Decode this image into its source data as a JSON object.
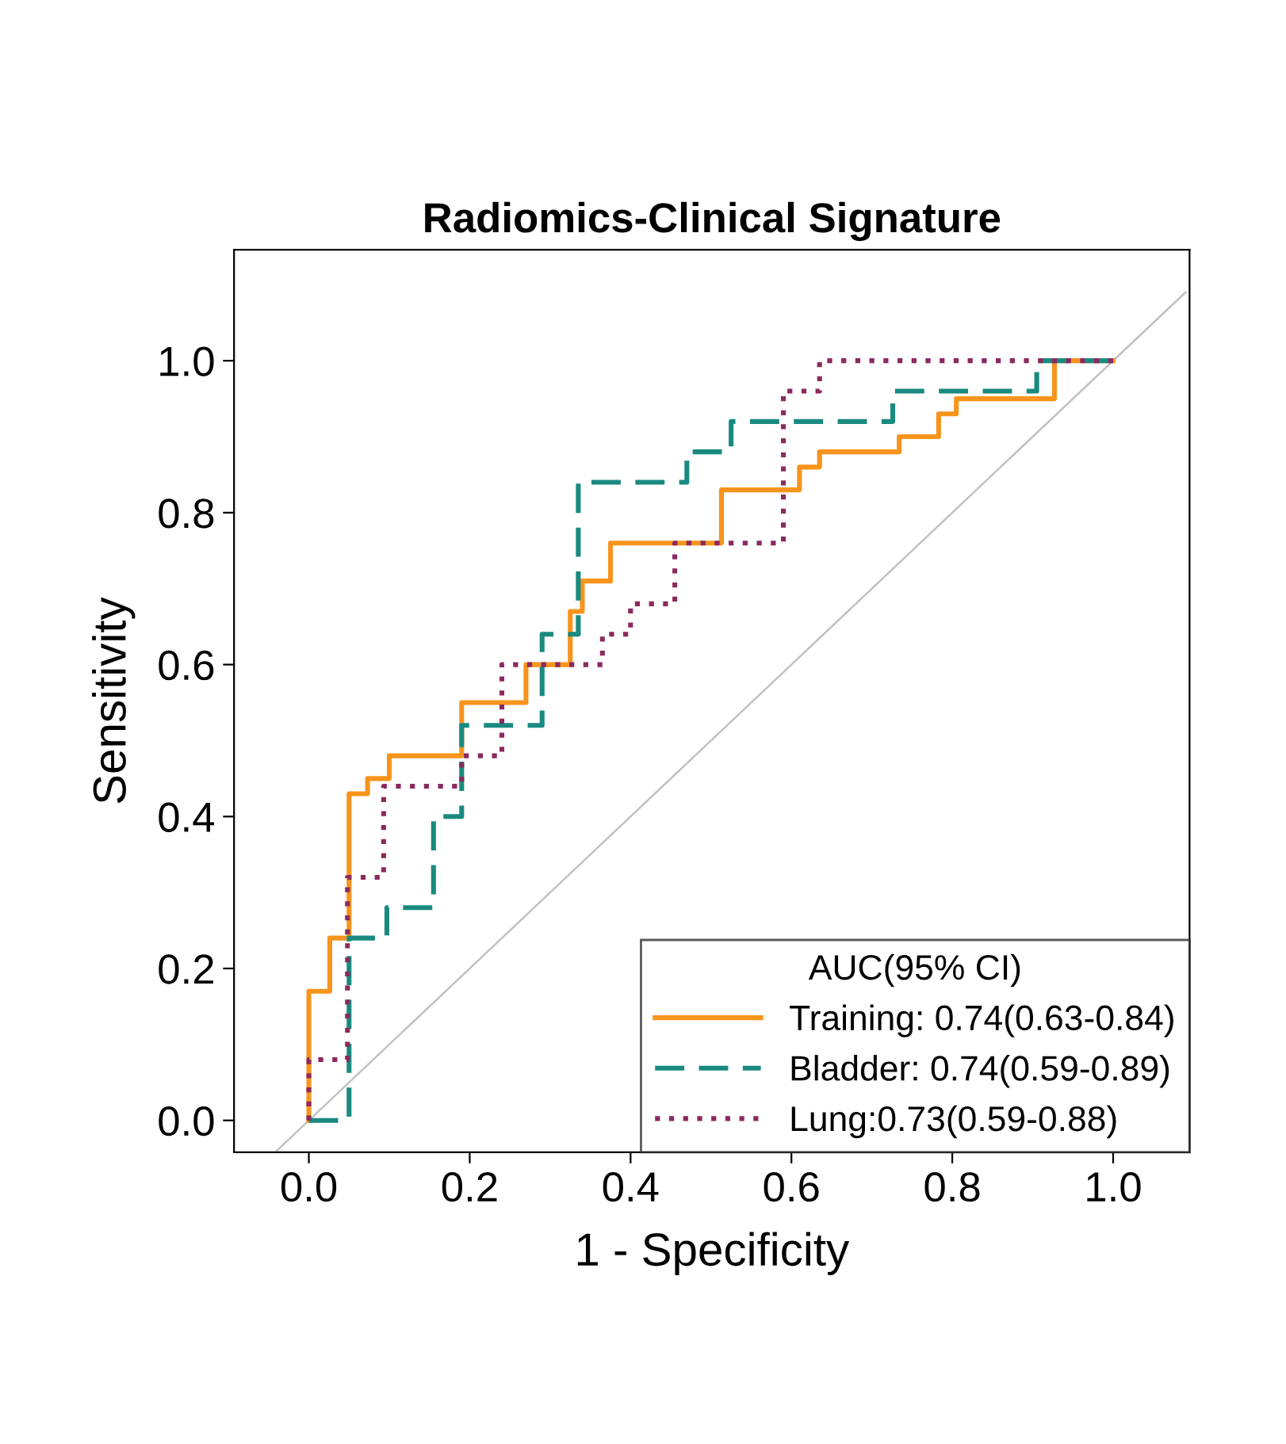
{
  "chart_data": {
    "type": "line",
    "title": "Radiomics-Clinical Signature",
    "xlabel": "1 - Specificity",
    "ylabel": "Sensitivity",
    "legend_title": "AUC(95% CI)",
    "series": [
      {
        "name": "Training: 0.74(0.63-0.84)",
        "color": "#f7941d",
        "line_style": "solid",
        "x": [
          0,
          0,
          0.026,
          0.026,
          0.05,
          0.05,
          0.073,
          0.073,
          0.1,
          0.1,
          0.19,
          0.19,
          0.27,
          0.27,
          0.325,
          0.325,
          0.34,
          0.34,
          0.375,
          0.375,
          0.513,
          0.513,
          0.61,
          0.61,
          0.635,
          0.635,
          0.734,
          0.734,
          0.783,
          0.783,
          0.805,
          0.805,
          0.927,
          0.927,
          1.0
        ],
        "values": [
          0,
          0.17,
          0.17,
          0.24,
          0.24,
          0.43,
          0.43,
          0.45,
          0.45,
          0.48,
          0.48,
          0.55,
          0.55,
          0.6,
          0.6,
          0.67,
          0.67,
          0.71,
          0.71,
          0.76,
          0.76,
          0.83,
          0.83,
          0.86,
          0.86,
          0.88,
          0.88,
          0.9,
          0.9,
          0.93,
          0.93,
          0.95,
          0.95,
          1.0,
          1.0
        ]
      },
      {
        "name": "Bladder: 0.74(0.59-0.89)",
        "color": "#1a8a80",
        "line_style": "dashed",
        "x": [
          0,
          0.05,
          0.05,
          0.097,
          0.097,
          0.155,
          0.155,
          0.19,
          0.19,
          0.29,
          0.29,
          0.335,
          0.335,
          0.47,
          0.47,
          0.525,
          0.525,
          0.726,
          0.726,
          0.905,
          0.905,
          1.0
        ],
        "values": [
          0,
          0,
          0.24,
          0.24,
          0.28,
          0.28,
          0.4,
          0.4,
          0.52,
          0.52,
          0.64,
          0.64,
          0.84,
          0.84,
          0.88,
          0.88,
          0.92,
          0.92,
          0.96,
          0.96,
          1.0,
          1.0
        ]
      },
      {
        "name": "Lung:0.73(0.59-0.88)",
        "color": "#8b2a5e",
        "line_style": "dotted",
        "x": [
          0,
          0,
          0.048,
          0.048,
          0.093,
          0.093,
          0.19,
          0.19,
          0.24,
          0.24,
          0.365,
          0.365,
          0.4,
          0.4,
          0.455,
          0.455,
          0.59,
          0.59,
          0.635,
          0.635,
          1.0
        ],
        "values": [
          0,
          0.08,
          0.08,
          0.32,
          0.32,
          0.44,
          0.44,
          0.48,
          0.48,
          0.6,
          0.6,
          0.64,
          0.64,
          0.68,
          0.68,
          0.76,
          0.76,
          0.96,
          0.96,
          1.0,
          1.0
        ]
      },
      {
        "color": "#c0c0c0",
        "line_style": "solid",
        "x": [
          -0.04,
          1.09
        ],
        "values": [
          -0.04,
          1.09
        ]
      }
    ],
    "xlim": [
      -0.093,
      1.095
    ],
    "ylim": [
      -0.042,
      1.146
    ],
    "xticks": [
      {
        "value": 0,
        "label": "0.0"
      },
      {
        "value": 0.2,
        "label": "0.2"
      },
      {
        "value": 0.4,
        "label": "0.4"
      },
      {
        "value": 0.6,
        "label": "0.6"
      },
      {
        "value": 0.8,
        "label": "0.8"
      },
      {
        "value": 1.0,
        "label": "1.0"
      }
    ],
    "yticks": [
      {
        "value": 0,
        "label": "0.0"
      },
      {
        "value": 0.2,
        "label": "0.2"
      },
      {
        "value": 0.4,
        "label": "0.4"
      },
      {
        "value": 0.6,
        "label": "0.6"
      },
      {
        "value": 0.8,
        "label": "0.8"
      },
      {
        "value": 1.0,
        "label": "1.0"
      }
    ],
    "grid": false,
    "legend": "bottom right"
  }
}
